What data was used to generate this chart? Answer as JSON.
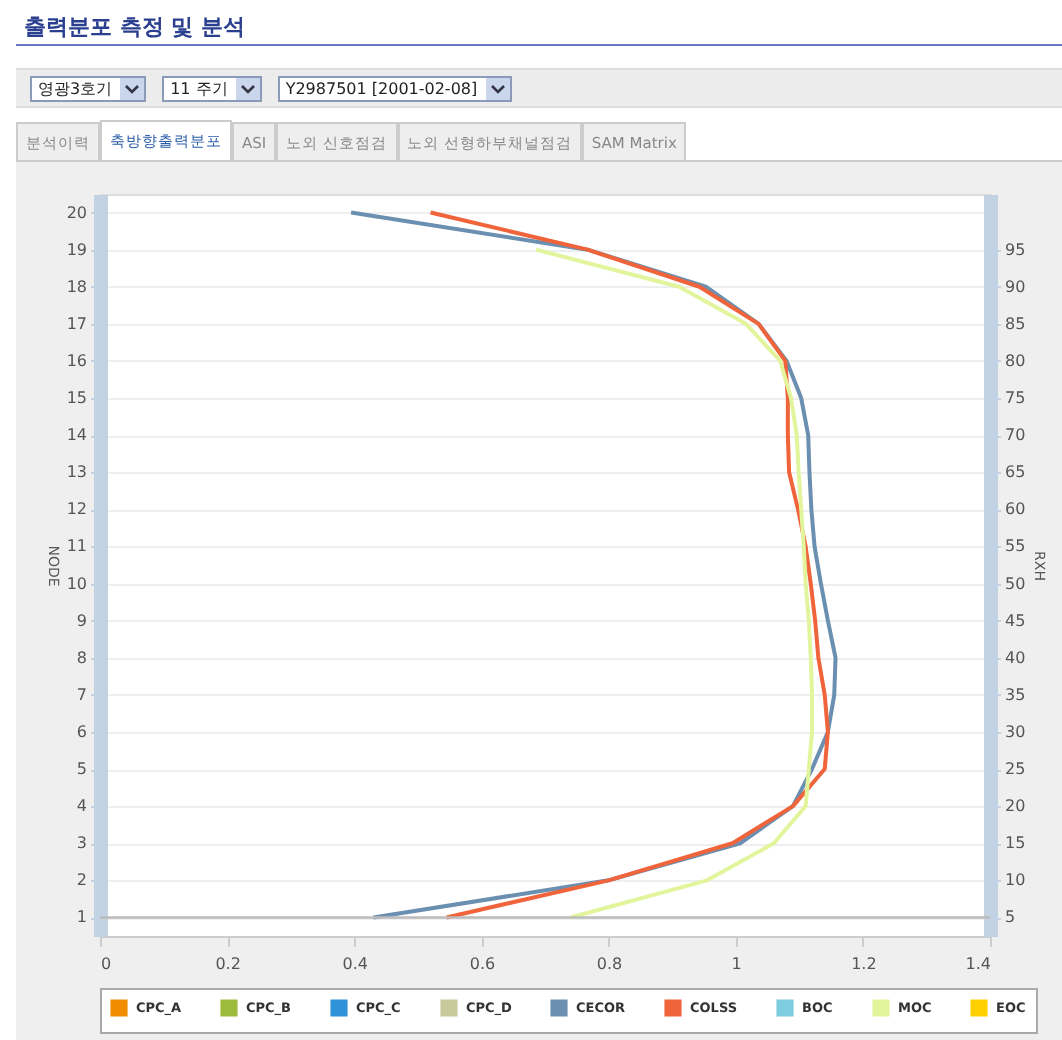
{
  "chart_data": {
    "type": "line",
    "title": "출력분포 측정 및 분석",
    "annotations": [
      "영광3호기",
      "11 주기",
      "Y2987501 [2001-02-08]",
      "분석이력",
      "축방향출력분포",
      "ASI",
      "노외 신호점검",
      "노외 선형하부채널점검",
      "SAM Matrix"
    ],
    "ylabel": "NODE",
    "y2label": "RXH",
    "xlim": [
      0,
      1.4
    ],
    "xticks": [
      0,
      0.2,
      0.4,
      0.6,
      0.8,
      1,
      1.2,
      1.4
    ],
    "ylim": [
      0.5,
      20.5
    ],
    "yticks": [
      1,
      2,
      3,
      4,
      5,
      6,
      7,
      8,
      9,
      10,
      11,
      12,
      13,
      14,
      15,
      16,
      17,
      18,
      19,
      20
    ],
    "y2lim": [
      2.5,
      102.5
    ],
    "y2ticks": [
      5,
      10,
      15,
      20,
      25,
      30,
      35,
      40,
      45,
      50,
      55,
      60,
      65,
      70,
      75,
      80,
      85,
      90,
      95
    ],
    "grid": "y",
    "legend": "bottom",
    "ref_lines": [
      {
        "axis": "y",
        "value": 1,
        "color": "#bbbbbb"
      }
    ],
    "series": [
      {
        "name": "CPC_A",
        "color": "#f08c00"
      },
      {
        "name": "CPC_B",
        "color": "#9dbb3c"
      },
      {
        "name": "CPC_C",
        "color": "#2f93d9"
      },
      {
        "name": "CPC_D",
        "color": "#c8c89c"
      },
      {
        "name": "CECOR",
        "color": "#6a8fb0",
        "x": [
          0.43,
          0.8,
          1.007,
          1.09,
          1.12,
          1.145,
          1.155,
          1.157,
          1.145,
          1.134,
          1.124,
          1.119,
          1.116,
          1.114,
          1.103,
          1.08,
          1.036,
          0.953,
          0.767,
          0.395
        ],
        "values": [
          1,
          2,
          3,
          4,
          5,
          6,
          7,
          8,
          9,
          10,
          11,
          12,
          13,
          14,
          15,
          16,
          17,
          18,
          19,
          20
        ]
      },
      {
        "name": "COLSS",
        "color": "#f0643c",
        "x": [
          0.545,
          0.8,
          0.995,
          1.09,
          1.14,
          1.145,
          1.14,
          1.13,
          1.125,
          1.118,
          1.11,
          1.098,
          1.084,
          1.082,
          1.082,
          1.078,
          1.036,
          0.943,
          0.767,
          0.52
        ],
        "values": [
          1,
          2,
          3,
          4,
          5,
          6,
          7,
          8,
          9,
          10,
          11,
          12,
          13,
          14,
          15,
          16,
          17,
          18,
          19,
          20
        ]
      },
      {
        "name": "BOC",
        "color": "#7ecce0"
      },
      {
        "name": "MOC",
        "color": "#e2f59c",
        "x": [
          0.74,
          0.955,
          1.06,
          1.11,
          1.115,
          1.12,
          1.12,
          1.118,
          1.115,
          1.11,
          1.107,
          1.103,
          1.099,
          1.096,
          1.087,
          1.07,
          1.016,
          0.911,
          0.686
        ],
        "values": [
          1,
          2,
          3,
          4,
          5,
          6,
          7,
          8,
          9,
          10,
          11,
          12,
          13,
          14,
          15,
          16,
          17,
          18,
          19
        ]
      },
      {
        "name": "EOC",
        "color": "#ffd000"
      }
    ]
  }
}
